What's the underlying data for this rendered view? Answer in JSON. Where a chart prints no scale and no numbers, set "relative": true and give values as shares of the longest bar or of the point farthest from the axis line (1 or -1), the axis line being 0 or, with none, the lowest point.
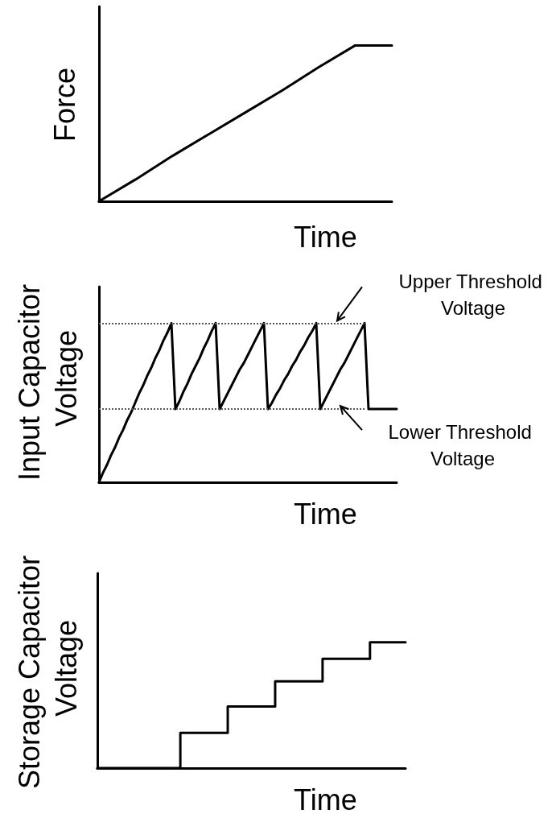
{
  "chart_data": [
    {
      "type": "line",
      "relative": true,
      "xlabel": "Time",
      "ylabel": "Force",
      "marker": "none",
      "line_style": "solid",
      "color": "#000000",
      "categories": [
        null,
        null,
        null,
        null,
        null,
        null,
        null,
        null,
        null
      ],
      "values": [
        0,
        0.14,
        0.29,
        0.43,
        0.57,
        0.71,
        0.86,
        1,
        1
      ]
    },
    {
      "type": "line",
      "relative": true,
      "xlabel": "Time",
      "ylabel": "Input Capacitor Voltage",
      "marker": "none",
      "line_style": "solid",
      "color": "#000000",
      "categories": [
        null,
        null,
        null,
        null,
        null,
        null,
        null,
        null,
        null,
        null,
        null,
        null,
        null,
        null,
        null,
        null,
        null,
        null,
        null,
        null,
        null,
        null,
        null,
        null,
        null,
        null,
        null,
        null,
        null,
        null,
        null,
        null,
        null,
        null,
        null,
        null,
        null,
        null,
        null,
        null,
        null,
        null,
        null,
        null,
        null,
        null,
        null,
        null,
        null,
        null,
        null,
        null,
        null,
        null,
        null,
        null,
        null,
        null,
        null,
        null,
        null,
        null,
        null,
        null,
        null,
        null,
        null,
        null,
        null,
        null,
        null,
        null,
        null,
        null,
        null
      ],
      "values": [
        0,
        0.06,
        0.11,
        0.17,
        0.22,
        0.28,
        0.33,
        0.39,
        0.44,
        0.5,
        0.56,
        0.61,
        0.67,
        0.72,
        0.78,
        0.83,
        0.89,
        0.94,
        1,
        0.46,
        0.51,
        0.57,
        0.62,
        0.68,
        0.73,
        0.78,
        0.84,
        0.89,
        0.95,
        1,
        0.46,
        0.51,
        0.56,
        0.61,
        0.66,
        0.71,
        0.75,
        0.8,
        0.85,
        0.9,
        0.95,
        1,
        0.46,
        0.5,
        0.55,
        0.59,
        0.64,
        0.68,
        0.73,
        0.77,
        0.82,
        0.86,
        0.91,
        0.95,
        1,
        0.46,
        0.51,
        0.56,
        0.61,
        0.66,
        0.71,
        0.75,
        0.8,
        0.85,
        0.9,
        0.95,
        1,
        0.46,
        0.46,
        0.46,
        0.46,
        0.46,
        0.46,
        0.46,
        0.46
      ],
      "ref_lines": [
        {
          "axis": "y",
          "value": 1,
          "label": "Upper Threshold Voltage",
          "line_style": "dotted",
          "color": "#555555"
        },
        {
          "axis": "y",
          "value": 0.46,
          "label": "Lower Threshold Voltage",
          "line_style": "dotted",
          "color": "#555555"
        }
      ]
    },
    {
      "type": "step",
      "relative": true,
      "xlabel": "Time",
      "ylabel": "Storage Capacitor Voltage",
      "marker": "none",
      "line_style": "solid",
      "color": "#000000",
      "categories": [
        null,
        null,
        null,
        null,
        null,
        null,
        null,
        null,
        null,
        null,
        null,
        null,
        null,
        null,
        null,
        null,
        null,
        null,
        null,
        null,
        null,
        null,
        null,
        null,
        null,
        null,
        null
      ],
      "values": [
        0,
        0,
        0,
        0,
        0,
        0,
        0,
        0.28,
        0.28,
        0.28,
        0.28,
        0.49,
        0.49,
        0.49,
        0.49,
        0.69,
        0.69,
        0.69,
        0.69,
        0.87,
        0.87,
        0.87,
        0.87,
        1,
        1,
        1,
        1
      ]
    }
  ]
}
